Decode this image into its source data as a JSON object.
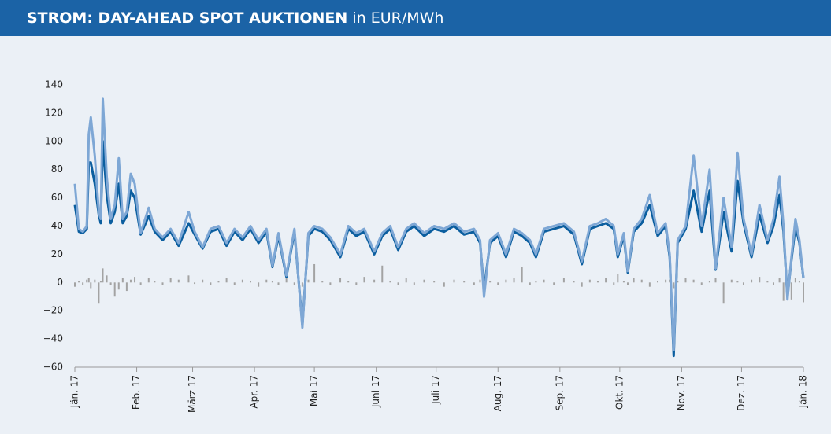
{
  "chart_data": {
    "type": "line",
    "title": "STROM: DAY-AHEAD SPOT AUKTIONEN",
    "subtitle": "in EUR/MWh",
    "x": [
      0,
      2,
      4,
      6,
      7,
      8,
      10,
      12,
      13,
      14,
      16,
      18,
      20,
      22,
      24,
      26,
      28,
      30,
      33,
      37,
      40,
      44,
      48,
      52,
      57,
      60,
      64,
      68,
      72,
      76,
      80,
      84,
      88,
      92,
      96,
      99,
      102,
      106,
      110,
      114,
      117,
      120,
      124,
      128,
      133,
      137,
      141,
      145,
      150,
      154,
      158,
      162,
      166,
      170,
      175,
      180,
      185,
      190,
      195,
      200,
      203,
      205,
      208,
      212,
      216,
      220,
      224,
      228,
      231,
      235,
      240,
      245,
      250,
      254,
      258,
      262,
      266,
      270,
      272,
      275,
      277,
      280,
      284,
      288,
      292,
      296,
      298,
      300,
      302,
      306,
      310,
      314,
      318,
      321,
      325,
      329,
      332,
      335,
      339,
      343,
      347,
      350,
      353,
      355,
      357,
      359,
      361,
      363,
      365
    ],
    "series": [
      {
        "type": "bar",
        "color": "#a3a3a3",
        "values": [
          -3,
          1,
          -2,
          2,
          3,
          -4,
          2,
          -15,
          1,
          10,
          5,
          -2,
          -10,
          -5,
          3,
          -6,
          2,
          4,
          -2,
          3,
          1,
          -2,
          3,
          2,
          5,
          -1,
          2,
          -2,
          1,
          3,
          -2,
          2,
          1,
          -3,
          2,
          1,
          -2,
          3,
          -2,
          -3,
          2,
          13,
          1,
          -2,
          3,
          1,
          -2,
          4,
          2,
          12,
          1,
          -2,
          3,
          -2,
          2,
          1,
          -3,
          2,
          1,
          -2,
          2,
          -5,
          1,
          -2,
          2,
          3,
          11,
          -2,
          1,
          2,
          -2,
          3,
          1,
          -3,
          2,
          1,
          3,
          -2,
          6,
          1,
          -2,
          3,
          2,
          -3,
          1,
          2,
          2,
          -4,
          1,
          3,
          2,
          -2,
          1,
          3,
          -15,
          2,
          1,
          -2,
          2,
          4,
          1,
          -2,
          3,
          -13,
          2,
          -12,
          3,
          1,
          -14
        ]
      },
      {
        "type": "line",
        "color": "#0b5e9f",
        "values": [
          55,
          36,
          35,
          38,
          85,
          85,
          70,
          48,
          42,
          100,
          62,
          42,
          50,
          70,
          42,
          47,
          65,
          60,
          34,
          47,
          36,
          30,
          36,
          26,
          42,
          34,
          24,
          36,
          38,
          26,
          36,
          30,
          38,
          28,
          36,
          11,
          33,
          4,
          36,
          -30,
          33,
          38,
          36,
          30,
          18,
          38,
          33,
          36,
          20,
          33,
          38,
          23,
          36,
          40,
          33,
          38,
          36,
          40,
          34,
          36,
          28,
          -5,
          28,
          33,
          18,
          36,
          33,
          28,
          18,
          36,
          38,
          40,
          34,
          13,
          38,
          40,
          42,
          38,
          18,
          33,
          7,
          36,
          42,
          55,
          33,
          40,
          18,
          -52,
          28,
          38,
          65,
          36,
          65,
          9,
          50,
          22,
          72,
          42,
          18,
          48,
          28,
          40,
          62,
          36,
          -10,
          16,
          40,
          28,
          3
        ]
      },
      {
        "type": "line",
        "color": "#7ea7d5",
        "values": [
          70,
          38,
          36,
          40,
          105,
          117,
          90,
          50,
          45,
          130,
          75,
          45,
          55,
          88,
          45,
          50,
          77,
          70,
          35,
          53,
          38,
          32,
          38,
          28,
          50,
          36,
          25,
          38,
          40,
          28,
          38,
          32,
          40,
          30,
          38,
          12,
          35,
          5,
          38,
          -32,
          35,
          40,
          38,
          32,
          20,
          40,
          35,
          38,
          22,
          35,
          40,
          25,
          38,
          42,
          35,
          40,
          38,
          42,
          36,
          38,
          30,
          -10,
          30,
          35,
          20,
          38,
          35,
          30,
          20,
          38,
          40,
          42,
          36,
          15,
          40,
          42,
          45,
          40,
          20,
          35,
          8,
          38,
          45,
          62,
          35,
          42,
          20,
          -48,
          30,
          40,
          90,
          40,
          80,
          10,
          60,
          25,
          92,
          45,
          20,
          55,
          30,
          45,
          75,
          40,
          -12,
          18,
          45,
          30,
          3
        ]
      }
    ],
    "xlim": [
      0,
      365
    ],
    "xticks": [
      {
        "value": 0,
        "label": "Jän. 17"
      },
      {
        "value": 31,
        "label": "Feb. 17"
      },
      {
        "value": 59,
        "label": "März 17"
      },
      {
        "value": 90,
        "label": "Apr. 17"
      },
      {
        "value": 120,
        "label": "Mai 17"
      },
      {
        "value": 151,
        "label": "Juni 17"
      },
      {
        "value": 181,
        "label": "Juli 17"
      },
      {
        "value": 212,
        "label": "Aug. 17"
      },
      {
        "value": 243,
        "label": "Sep. 17"
      },
      {
        "value": 273,
        "label": "Okt. 17"
      },
      {
        "value": 304,
        "label": "Nov. 17"
      },
      {
        "value": 334,
        "label": "Dez. 17"
      },
      {
        "value": 365,
        "label": "Jän. 18"
      }
    ],
    "ylim": [
      -60,
      140
    ],
    "yticks": [
      {
        "value": -60,
        "label": "−60"
      },
      {
        "value": -40,
        "label": "−40"
      },
      {
        "value": -20,
        "label": "−20"
      },
      0,
      20,
      40,
      60,
      80,
      100,
      120,
      140
    ]
  }
}
